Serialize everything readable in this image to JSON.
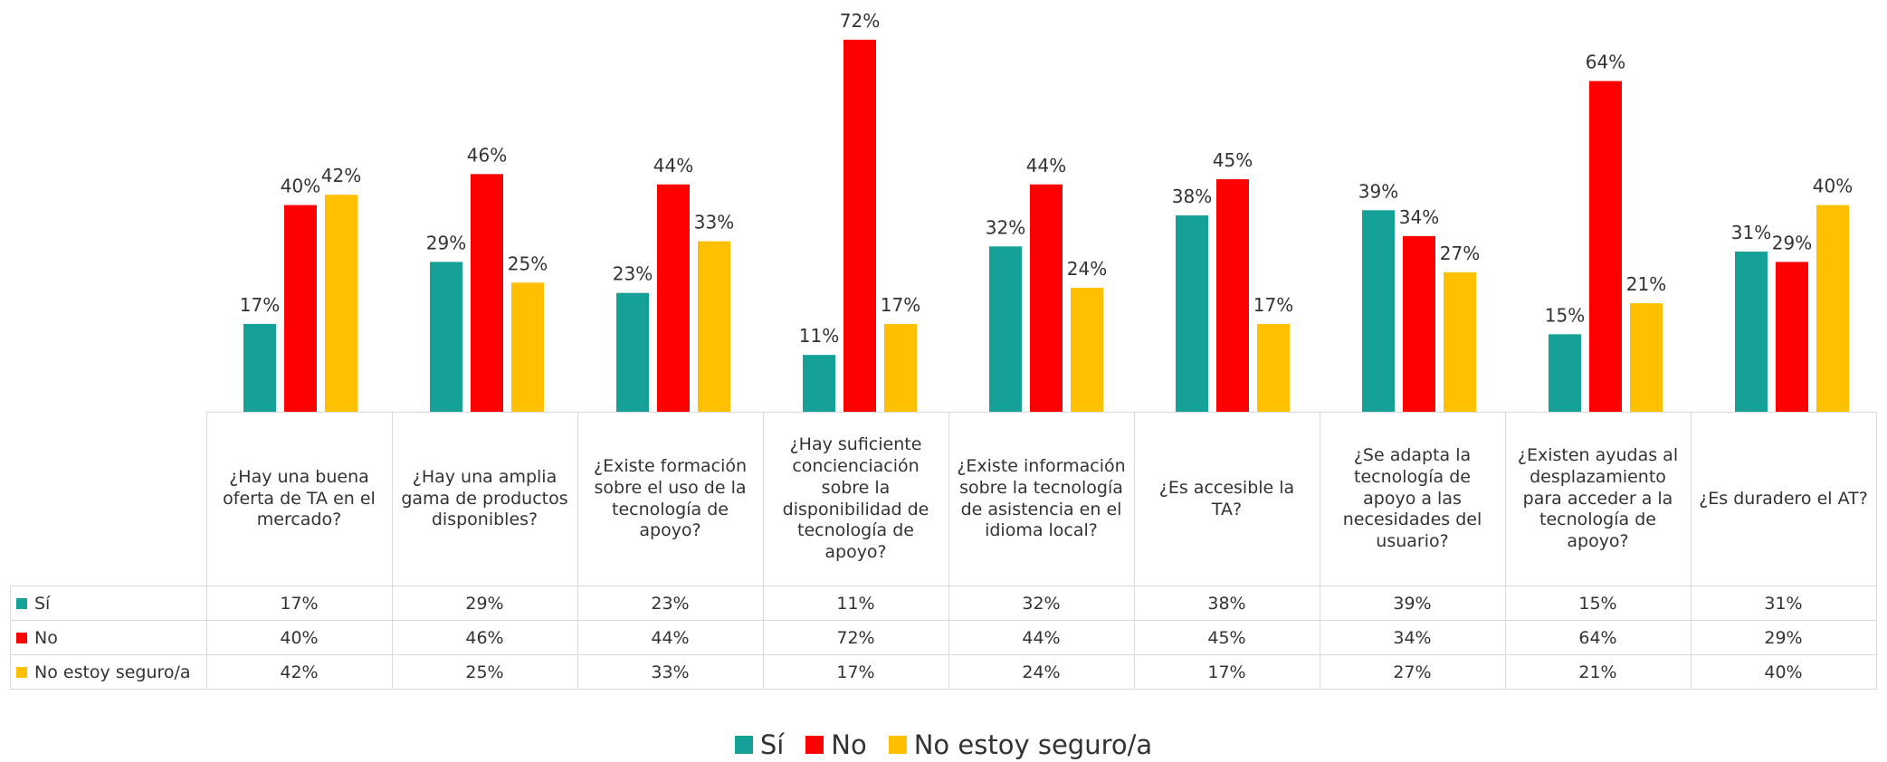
{
  "chart_data": {
    "type": "bar",
    "categories": [
      "¿Hay una buena oferta de TA en el mercado?",
      "¿Hay una amplia gama de productos disponibles?",
      "¿Existe formación sobre el uso de la tecnología de apoyo?",
      "¿Hay suficiente concienciación sobre la disponibilidad de tecnología de apoyo?",
      "¿Existe información sobre la tecnología de asistencia en el idioma local?",
      "¿Es accesible la TA?",
      "¿Se adapta la tecnología de apoyo a las necesidades del usuario?",
      "¿Existen ayudas al desplazamiento para acceder a la tecnología de apoyo?",
      "¿Es duradero el AT?"
    ],
    "series": [
      {
        "name": "Sí",
        "color": "#15a197",
        "values": [
          17,
          29,
          23,
          11,
          32,
          38,
          39,
          15,
          31
        ],
        "value_labels": [
          "17%",
          "29%",
          "23%",
          "11%",
          "32%",
          "38%",
          "39%",
          "15%",
          "31%"
        ]
      },
      {
        "name": "No",
        "color": "#ff0000",
        "values": [
          40,
          46,
          44,
          72,
          44,
          45,
          34,
          64,
          29
        ],
        "value_labels": [
          "40%",
          "46%",
          "44%",
          "72%",
          "44%",
          "45%",
          "34%",
          "64%",
          "29%"
        ]
      },
      {
        "name": "No estoy seguro/a",
        "color": "#ffc000",
        "values": [
          42,
          25,
          33,
          17,
          24,
          17,
          27,
          21,
          40
        ],
        "value_labels": [
          "42%",
          "25%",
          "33%",
          "17%",
          "24%",
          "17%",
          "27%",
          "21%",
          "40%"
        ]
      }
    ],
    "legend": "bottom",
    "data_table": true
  }
}
